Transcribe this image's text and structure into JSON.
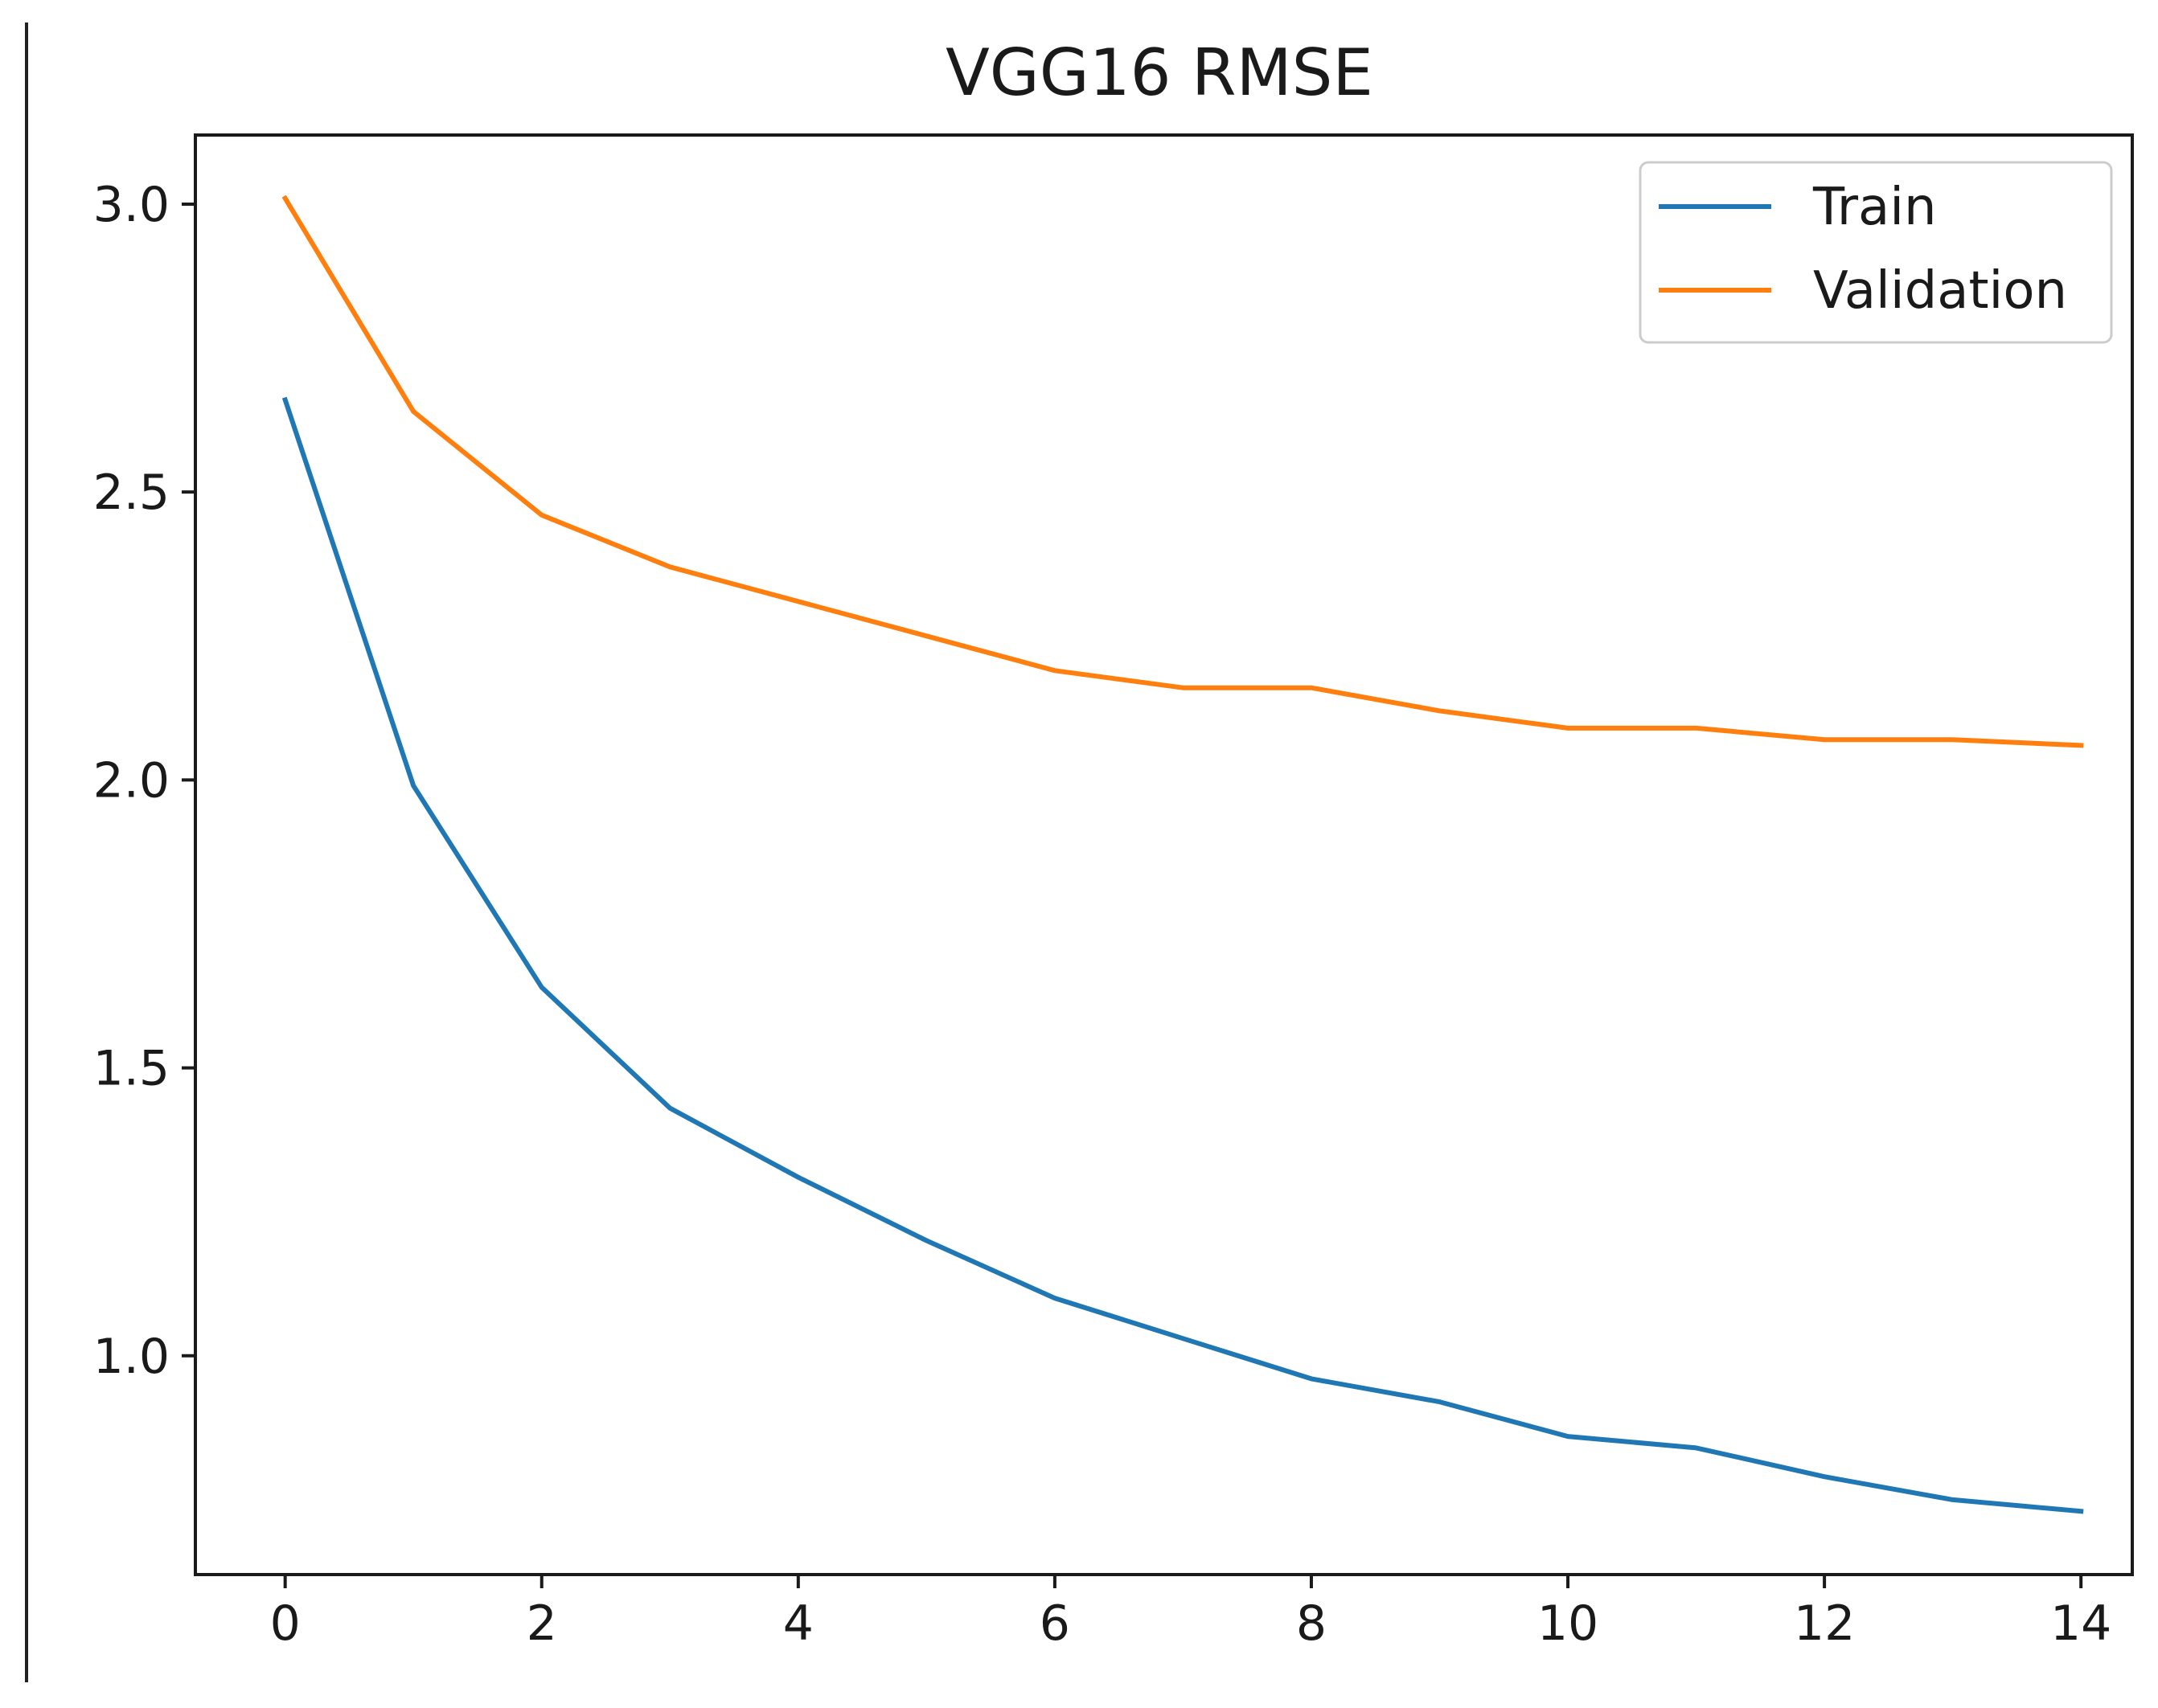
{
  "chart_data": {
    "type": "line",
    "title": "VGG16 RMSE",
    "xlabel": "",
    "ylabel": "",
    "x": [
      0,
      1,
      2,
      3,
      4,
      5,
      6,
      7,
      8,
      9,
      10,
      11,
      12,
      13,
      14
    ],
    "xlim": [
      -0.7,
      14.4
    ],
    "ylim": [
      0.62,
      3.12
    ],
    "xticks": [
      0,
      2,
      4,
      6,
      8,
      10,
      12,
      14
    ],
    "yticks": [
      1.0,
      1.5,
      2.0,
      2.5,
      3.0
    ],
    "xtick_labels": [
      "0",
      "2",
      "4",
      "6",
      "8",
      "10",
      "12",
      "14"
    ],
    "ytick_labels": [
      "1.0",
      "1.5",
      "2.0",
      "2.5",
      "3.0"
    ],
    "grid": false,
    "legend_position": "top-right",
    "series": [
      {
        "name": "Train",
        "color": "#1f77b4",
        "values": [
          2.66,
          1.99,
          1.64,
          1.43,
          1.31,
          1.2,
          1.1,
          1.03,
          0.96,
          0.92,
          0.86,
          0.84,
          0.79,
          0.75,
          0.73
        ]
      },
      {
        "name": "Validation",
        "color": "#ff7f0e",
        "values": [
          3.01,
          2.64,
          2.46,
          2.37,
          2.31,
          2.25,
          2.19,
          2.16,
          2.16,
          2.12,
          2.09,
          2.09,
          2.07,
          2.07,
          2.06
        ]
      }
    ]
  }
}
